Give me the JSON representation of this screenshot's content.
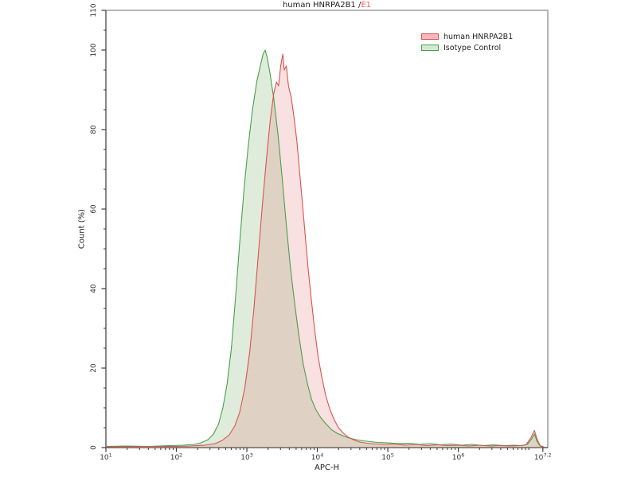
{
  "title": {
    "main": "human HNRPA2B1 /",
    "highlight": "E1",
    "highlight_color": "#ef5b5b"
  },
  "legend": {
    "items": [
      {
        "label": "human HNRPA2B1",
        "stroke": "#d9534f",
        "fill": "#f3b8bf"
      },
      {
        "label": "Isotype Control",
        "stroke": "#47a04b",
        "fill": "#d3ead1"
      }
    ]
  },
  "chart_data": {
    "type": "area",
    "subtype": "flow-cytometry-histogram-overlay",
    "title": "human HNRPA2B1 /E1",
    "xlabel": "APC-H",
    "ylabel": "Count  (%)",
    "x_scale": "log10",
    "xlim_log": [
      1,
      7.27
    ],
    "ylim": [
      0,
      110
    ],
    "grid": false,
    "legend_position": "top-right",
    "frame_color": "#9d9d9d",
    "axis_color": "#3a3a3a",
    "x_major_ticks": [
      {
        "log": 1,
        "base": "10",
        "exp": "1"
      },
      {
        "log": 2,
        "base": "10",
        "exp": "2"
      },
      {
        "log": 3,
        "base": "10",
        "exp": "3"
      },
      {
        "log": 4,
        "base": "10",
        "exp": "4"
      },
      {
        "log": 5,
        "base": "10",
        "exp": "5"
      },
      {
        "log": 6,
        "base": "10",
        "exp": "6"
      },
      {
        "log": 7.2,
        "base": "10",
        "exp": "7.2"
      }
    ],
    "y_major_ticks": [
      0,
      20,
      40,
      60,
      80,
      100,
      110
    ],
    "y_minor_step": 5,
    "series": [
      {
        "name": "human HNRPA2B1",
        "stroke": "#d9534f",
        "fill_rgba": "rgba(226,115,120,0.22)",
        "peak_log": 3.51,
        "peak_pct": 99,
        "points": [
          [
            1.0,
            0.2
          ],
          [
            1.5,
            0.3
          ],
          [
            2.0,
            0.3
          ],
          [
            2.2,
            0.4
          ],
          [
            2.4,
            0.6
          ],
          [
            2.55,
            1
          ],
          [
            2.65,
            1.8
          ],
          [
            2.75,
            3.2
          ],
          [
            2.83,
            5.5
          ],
          [
            2.9,
            9
          ],
          [
            2.97,
            15
          ],
          [
            3.04,
            24
          ],
          [
            3.1,
            35
          ],
          [
            3.16,
            48
          ],
          [
            3.22,
            61
          ],
          [
            3.28,
            73
          ],
          [
            3.33,
            82
          ],
          [
            3.38,
            89
          ],
          [
            3.42,
            92
          ],
          [
            3.45,
            91
          ],
          [
            3.48,
            96
          ],
          [
            3.51,
            99
          ],
          [
            3.53,
            95
          ],
          [
            3.56,
            96
          ],
          [
            3.59,
            91
          ],
          [
            3.63,
            88
          ],
          [
            3.67,
            83
          ],
          [
            3.71,
            77
          ],
          [
            3.75,
            69
          ],
          [
            3.79,
            61
          ],
          [
            3.83,
            53
          ],
          [
            3.87,
            45
          ],
          [
            3.91,
            38
          ],
          [
            3.96,
            30
          ],
          [
            4.01,
            23
          ],
          [
            4.06,
            18
          ],
          [
            4.12,
            13
          ],
          [
            4.18,
            9.5
          ],
          [
            4.24,
            7
          ],
          [
            4.3,
            5
          ],
          [
            4.37,
            3.6
          ],
          [
            4.44,
            2.6
          ],
          [
            4.52,
            1.9
          ],
          [
            4.6,
            1.4
          ],
          [
            4.7,
            1.1
          ],
          [
            4.82,
            0.9
          ],
          [
            4.95,
            0.8
          ],
          [
            5.1,
            0.9
          ],
          [
            5.25,
            0.6
          ],
          [
            5.4,
            0.8
          ],
          [
            5.55,
            0.5
          ],
          [
            5.7,
            0.7
          ],
          [
            5.85,
            0.5
          ],
          [
            6.0,
            0.6
          ],
          [
            6.15,
            0.4
          ],
          [
            6.3,
            0.6
          ],
          [
            6.45,
            0.4
          ],
          [
            6.6,
            0.5
          ],
          [
            6.75,
            0.4
          ],
          [
            6.88,
            0.5
          ],
          [
            6.96,
            0.7
          ],
          [
            7.03,
            2.5
          ],
          [
            7.08,
            4.3
          ],
          [
            7.12,
            2
          ],
          [
            7.16,
            0.5
          ],
          [
            7.22,
            0.1
          ]
        ]
      },
      {
        "name": "Isotype Control",
        "stroke": "#47a04b",
        "fill_rgba": "rgba(110,170,95,0.22)",
        "peak_log": 3.26,
        "peak_pct": 100,
        "points": [
          [
            1.0,
            0.3
          ],
          [
            1.3,
            0.4
          ],
          [
            1.6,
            0.3
          ],
          [
            1.9,
            0.5
          ],
          [
            2.1,
            0.6
          ],
          [
            2.25,
            0.8
          ],
          [
            2.35,
            1.2
          ],
          [
            2.45,
            2
          ],
          [
            2.53,
            3.5
          ],
          [
            2.6,
            6
          ],
          [
            2.66,
            10
          ],
          [
            2.72,
            16
          ],
          [
            2.78,
            25
          ],
          [
            2.84,
            38
          ],
          [
            2.9,
            52
          ],
          [
            2.96,
            65
          ],
          [
            3.02,
            76
          ],
          [
            3.08,
            85
          ],
          [
            3.14,
            92
          ],
          [
            3.19,
            96
          ],
          [
            3.23,
            99
          ],
          [
            3.26,
            100
          ],
          [
            3.29,
            98
          ],
          [
            3.33,
            94
          ],
          [
            3.38,
            88
          ],
          [
            3.44,
            79
          ],
          [
            3.5,
            68
          ],
          [
            3.56,
            56
          ],
          [
            3.62,
            45
          ],
          [
            3.68,
            36
          ],
          [
            3.74,
            28
          ],
          [
            3.8,
            21
          ],
          [
            3.86,
            16
          ],
          [
            3.92,
            12
          ],
          [
            3.98,
            9.5
          ],
          [
            4.05,
            7.5
          ],
          [
            4.12,
            6
          ],
          [
            4.2,
            4.5
          ],
          [
            4.28,
            3.6
          ],
          [
            4.36,
            3
          ],
          [
            4.45,
            2.4
          ],
          [
            4.55,
            2
          ],
          [
            4.65,
            1.7
          ],
          [
            4.75,
            1.5
          ],
          [
            4.85,
            1.3
          ],
          [
            5.0,
            1.2
          ],
          [
            5.15,
            1.0
          ],
          [
            5.3,
            1.1
          ],
          [
            5.45,
            0.8
          ],
          [
            5.6,
            1.0
          ],
          [
            5.75,
            0.7
          ],
          [
            5.9,
            0.9
          ],
          [
            6.05,
            0.6
          ],
          [
            6.2,
            0.8
          ],
          [
            6.35,
            0.5
          ],
          [
            6.5,
            0.7
          ],
          [
            6.65,
            0.5
          ],
          [
            6.8,
            0.6
          ],
          [
            6.9,
            0.5
          ],
          [
            6.98,
            0.8
          ],
          [
            7.04,
            2.2
          ],
          [
            7.08,
            3.4
          ],
          [
            7.12,
            1.5
          ],
          [
            7.16,
            0.4
          ],
          [
            7.22,
            0.1
          ]
        ]
      }
    ]
  }
}
